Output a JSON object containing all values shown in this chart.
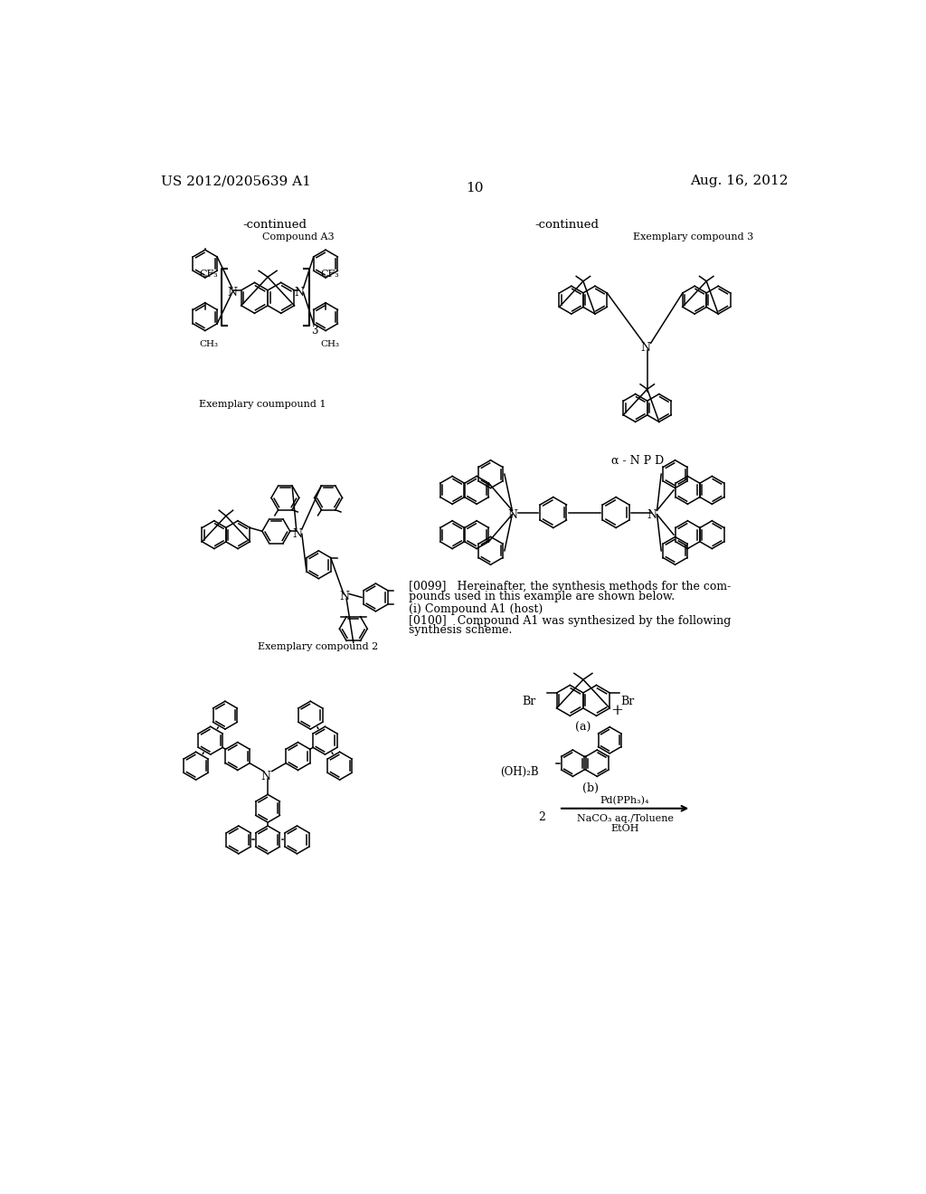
{
  "page_header_left": "US 2012/0205639 A1",
  "page_header_right": "Aug. 16, 2012",
  "page_number": "10",
  "background_color": "#ffffff",
  "continued_left": "-continued",
  "continued_right": "-continued",
  "compound_a3_label": "Compound A3",
  "exemplary1_label": "Exemplary coumpound 1",
  "exemplary2_label": "Exemplary compound 2",
  "exemplary3_label": "Exemplary compound 3",
  "alpha_npd_label": "α - N P D",
  "para0099_line1": "[0099]   Hereinafter, the synthesis methods for the com-",
  "para0099_line2": "pounds used in this example are shown below.",
  "para_i": "(i) Compound A1 (host)",
  "para0100_line1": "[0100]   Compound A1 was synthesized by the following",
  "para0100_line2": "synthesis scheme.",
  "reaction_label_a": "(a)",
  "reaction_label_b": "(b)",
  "reagents_line1": "Pd(PPh₃)₄",
  "reagents_line2": "NaCO₃ aq./Toluene",
  "reagents_line3": "EtOH"
}
